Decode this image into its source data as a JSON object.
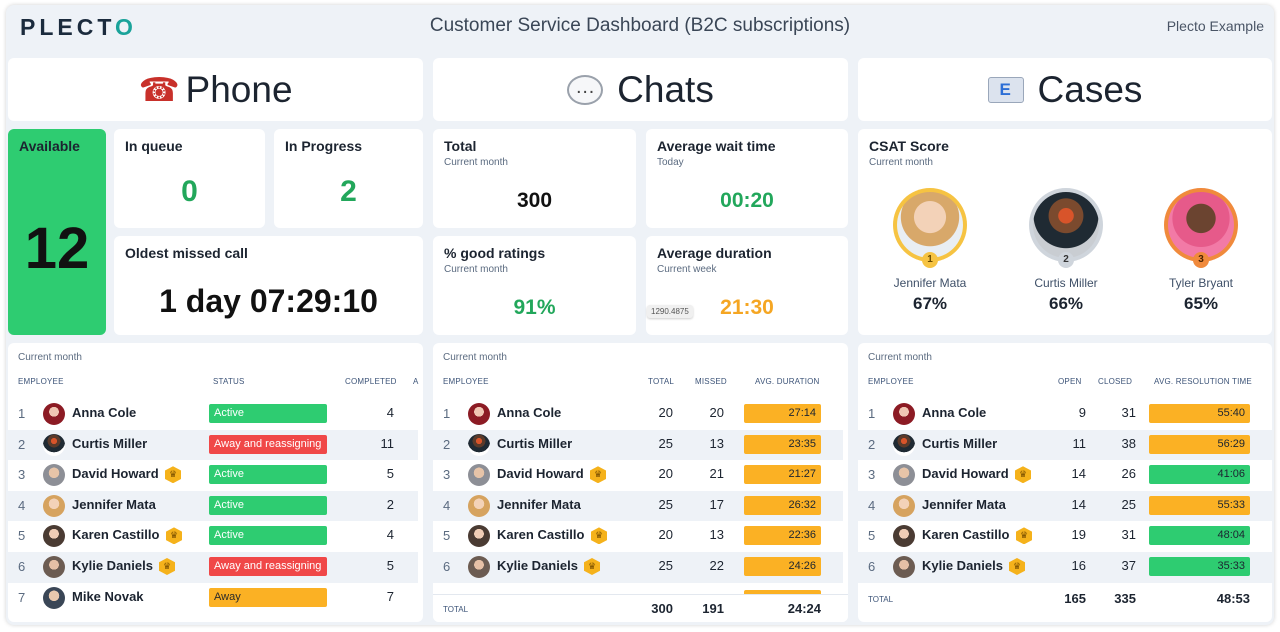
{
  "header": {
    "logo": "PLECT",
    "logo_accent": "O",
    "title": "Customer Service Dashboard (B2C subscriptions)",
    "org": "Plecto Example"
  },
  "sections": {
    "phone": "Phone",
    "chats": "Chats",
    "cases": "Cases"
  },
  "phone": {
    "available": {
      "label": "Available",
      "value": "12"
    },
    "in_queue": {
      "label": "In queue",
      "value": "0"
    },
    "in_progress": {
      "label": "In Progress",
      "value": "2"
    },
    "oldest_missed": {
      "label": "Oldest missed call",
      "value": "1 day 07:29:10"
    }
  },
  "chats": {
    "total": {
      "label": "Total",
      "sub": "Current month",
      "value": "300"
    },
    "avg_wait": {
      "label": "Average wait time",
      "sub": "Today",
      "value": "00:20"
    },
    "good_ratings": {
      "label": "% good ratings",
      "sub": "Current month",
      "value": "91%"
    },
    "avg_duration": {
      "label": "Average duration",
      "sub": "Current week",
      "value": "21:30"
    },
    "tooltip": "1290.4875"
  },
  "cases": {
    "csat": {
      "label": "CSAT Score",
      "sub": "Current month",
      "people": [
        {
          "rank": "1",
          "name": "Jennifer Mata",
          "pct": "67%"
        },
        {
          "rank": "2",
          "name": "Curtis Miller",
          "pct": "66%"
        },
        {
          "rank": "3",
          "name": "Tyler Bryant",
          "pct": "65%"
        }
      ]
    }
  },
  "phone_table": {
    "period": "Current month",
    "headers": [
      "EMPLOYEE",
      "STATUS",
      "COMPLETED",
      "A"
    ],
    "rows": [
      {
        "n": "1",
        "name": "Anna Cole",
        "trophy": false,
        "status": "Active",
        "status_type": "active",
        "completed": "4"
      },
      {
        "n": "2",
        "name": "Curtis Miller",
        "trophy": false,
        "status": "Away and reassigning",
        "status_type": "away-r",
        "completed": "11"
      },
      {
        "n": "3",
        "name": "David Howard",
        "trophy": true,
        "status": "Active",
        "status_type": "active",
        "completed": "5"
      },
      {
        "n": "4",
        "name": "Jennifer Mata",
        "trophy": false,
        "status": "Active",
        "status_type": "active",
        "completed": "2"
      },
      {
        "n": "5",
        "name": "Karen Castillo",
        "trophy": true,
        "status": "Active",
        "status_type": "active",
        "completed": "4"
      },
      {
        "n": "6",
        "name": "Kylie Daniels",
        "trophy": true,
        "status": "Away and reassigning",
        "status_type": "away-r",
        "completed": "5"
      },
      {
        "n": "7",
        "name": "Mike Novak",
        "trophy": false,
        "status": "Away",
        "status_type": "away",
        "completed": "7"
      }
    ]
  },
  "chats_table": {
    "period": "Current month",
    "headers": [
      "EMPLOYEE",
      "TOTAL",
      "MISSED",
      "AVG. DURATION"
    ],
    "rows": [
      {
        "n": "1",
        "name": "Anna Cole",
        "trophy": false,
        "total": "20",
        "missed": "20",
        "duration": "27:14"
      },
      {
        "n": "2",
        "name": "Curtis Miller",
        "trophy": false,
        "total": "25",
        "missed": "13",
        "duration": "23:35"
      },
      {
        "n": "3",
        "name": "David Howard",
        "trophy": true,
        "total": "20",
        "missed": "21",
        "duration": "21:27"
      },
      {
        "n": "4",
        "name": "Jennifer Mata",
        "trophy": false,
        "total": "25",
        "missed": "17",
        "duration": "26:32"
      },
      {
        "n": "5",
        "name": "Karen Castillo",
        "trophy": true,
        "total": "20",
        "missed": "13",
        "duration": "22:36"
      },
      {
        "n": "6",
        "name": "Kylie Daniels",
        "trophy": true,
        "total": "25",
        "missed": "22",
        "duration": "24:26"
      }
    ],
    "total_label": "TOTAL",
    "totals": {
      "total": "300",
      "missed": "191",
      "duration": "24:24"
    }
  },
  "cases_table": {
    "period": "Current month",
    "headers": [
      "EMPLOYEE",
      "OPEN",
      "CLOSED",
      "AVG. RESOLUTION TIME"
    ],
    "rows": [
      {
        "n": "1",
        "name": "Anna Cole",
        "trophy": false,
        "open": "9",
        "closed": "31",
        "time": "55:40",
        "color": "orange"
      },
      {
        "n": "2",
        "name": "Curtis Miller",
        "trophy": false,
        "open": "11",
        "closed": "38",
        "time": "56:29",
        "color": "orange"
      },
      {
        "n": "3",
        "name": "David Howard",
        "trophy": true,
        "open": "14",
        "closed": "26",
        "time": "41:06",
        "color": "green"
      },
      {
        "n": "4",
        "name": "Jennifer Mata",
        "trophy": false,
        "open": "14",
        "closed": "25",
        "time": "55:33",
        "color": "orange"
      },
      {
        "n": "5",
        "name": "Karen Castillo",
        "trophy": true,
        "open": "19",
        "closed": "31",
        "time": "48:04",
        "color": "green"
      },
      {
        "n": "6",
        "name": "Kylie Daniels",
        "trophy": true,
        "open": "16",
        "closed": "37",
        "time": "35:33",
        "color": "green"
      }
    ],
    "total_label": "TOTAL",
    "totals": {
      "open": "165",
      "closed": "335",
      "time": "48:53"
    }
  },
  "colors": {
    "green": "#2ecc71",
    "red": "#f04848",
    "orange": "#fbb124",
    "text_green": "#22a75b",
    "text_orange": "#f5a623",
    "background": "#eef2f7"
  }
}
